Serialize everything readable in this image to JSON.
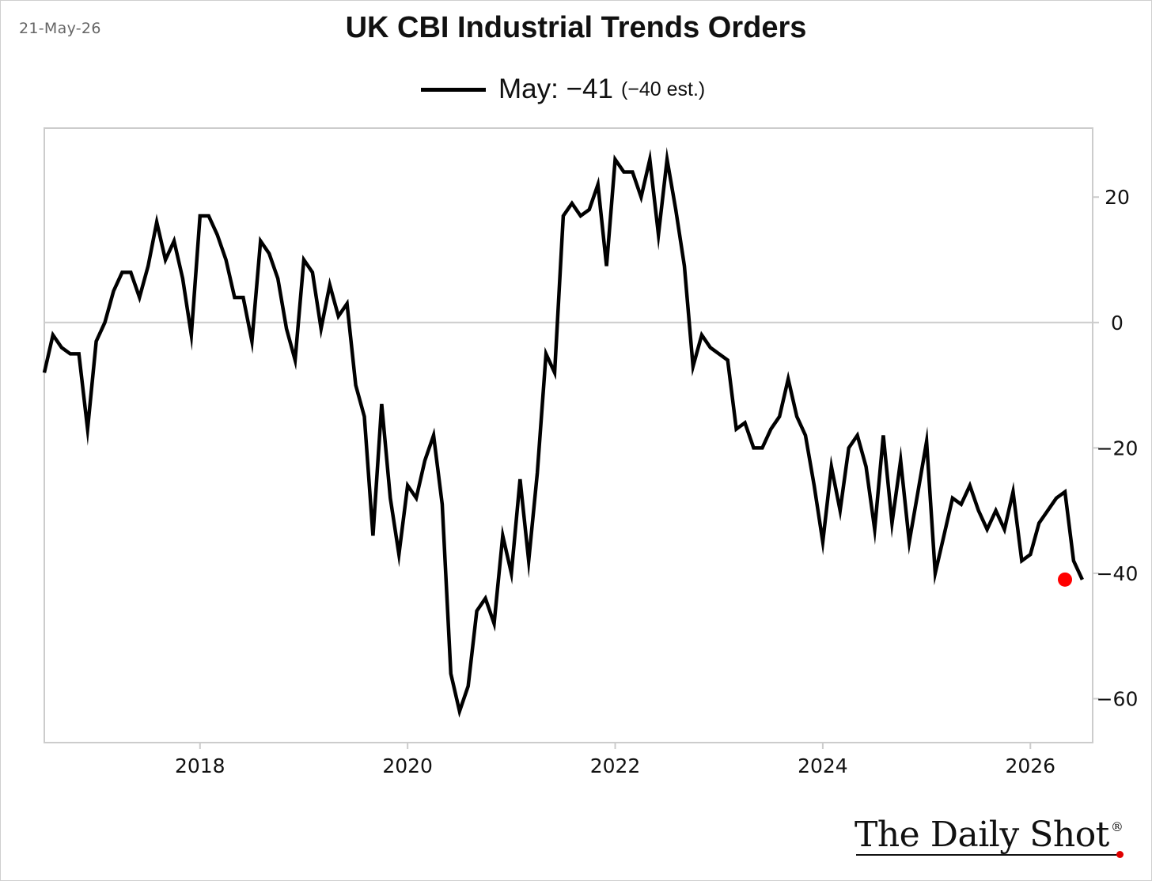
{
  "header": {
    "date": "21-May-26",
    "title": "UK CBI Industrial Trends Orders"
  },
  "legend": {
    "main": "May: −41",
    "sub": "(−40 est.)"
  },
  "brand": {
    "name": "The Daily Shot",
    "mark": "®"
  },
  "colors": {
    "line": "#000000",
    "latest_point": "#ff0000",
    "grid": "#cccccc",
    "frame": "#cccccc"
  },
  "chart_data": {
    "type": "line",
    "x_start": "2016-07",
    "x_end": "2026-05",
    "xlim": [
      2016.5,
      2026.6
    ],
    "ylim": [
      -67,
      31
    ],
    "x_ticks": [
      2018,
      2020,
      2022,
      2024,
      2026
    ],
    "x_tick_labels": [
      "2018",
      "2020",
      "2022",
      "2024",
      "2026"
    ],
    "y_ticks": [
      20,
      0,
      -20,
      -40,
      -60
    ],
    "y_tick_labels": [
      "20",
      "0",
      "−20",
      "−40",
      "−60"
    ],
    "zero_line": true,
    "y_axis_position": "right",
    "series": [
      {
        "values": [
          -8,
          -2,
          -4,
          -5,
          -5,
          -17,
          -3,
          0,
          5,
          8,
          8,
          4,
          9,
          16,
          10,
          13,
          7,
          -2,
          17,
          17,
          14,
          10,
          4,
          4,
          -3,
          13,
          11,
          7,
          -1,
          -6,
          10,
          8,
          -1,
          6,
          1,
          3,
          -10,
          -15,
          -34,
          -13,
          -28,
          -37,
          -26,
          -28,
          -22,
          -18,
          -29,
          -56,
          -62,
          -58,
          -46,
          -44,
          -48,
          -34,
          -40,
          -25,
          -38,
          -24,
          -5,
          -8,
          17,
          19,
          17,
          18,
          22,
          9,
          26,
          24,
          24,
          20,
          26,
          14,
          26,
          18,
          9,
          -7,
          -2,
          -4,
          -5,
          -6,
          -17,
          -16,
          -20,
          -20,
          -17,
          -15,
          -9,
          -15,
          -18,
          -26,
          -35,
          -23,
          -30,
          -20,
          -18,
          -23,
          -33,
          -18,
          -32,
          -22,
          -35,
          -27,
          -19,
          -40,
          -34,
          -28,
          -29,
          -26,
          -30,
          -33,
          -30,
          -33,
          -27,
          -38,
          -37,
          -32,
          -30,
          -28,
          -27,
          -38,
          -41
        ]
      }
    ],
    "latest_point": {
      "x": "2026-05",
      "y": -41
    }
  }
}
